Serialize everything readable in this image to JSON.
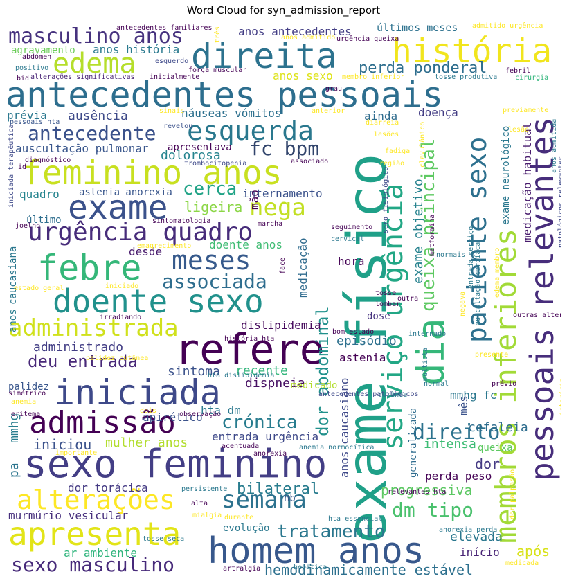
{
  "title": "Word Cloud for syn_admission_report",
  "words": [
    {
      "text": "antecedentes pessoais",
      "color": "#2d6e8e"
    },
    {
      "text": "exame físico",
      "color": "#1fa088"
    },
    {
      "text": "direita",
      "color": "#2c728e"
    },
    {
      "text": "história",
      "color": "#f1e51d"
    },
    {
      "text": "masculino anos",
      "color": "#46327e"
    },
    {
      "text": "edema",
      "color": "#b5de2b"
    },
    {
      "text": "feminino anos",
      "color": "#c8e020"
    },
    {
      "text": "exame",
      "color": "#3b528b"
    },
    {
      "text": "esquerda",
      "color": "#2a788e"
    },
    {
      "text": "fc bpm",
      "color": "#31446b"
    },
    {
      "text": "nega",
      "color": "#c2df23"
    },
    {
      "text": "urgência quadro",
      "color": "#472c7a"
    },
    {
      "text": "febre",
      "color": "#35b779"
    },
    {
      "text": "meses",
      "color": "#375a8c"
    },
    {
      "text": "doente sexo",
      "color": "#21918c"
    },
    {
      "text": "associada",
      "color": "#2e6d8e"
    },
    {
      "text": "administrada",
      "color": "#d0e11c"
    },
    {
      "text": "refere",
      "color": "#440154"
    },
    {
      "text": "iniciada",
      "color": "#3e4989"
    },
    {
      "text": "admissão",
      "color": "#440154"
    },
    {
      "text": "sexo feminino",
      "color": "#433e85"
    },
    {
      "text": "alterações",
      "color": "#fde725"
    },
    {
      "text": "apresenta",
      "color": "#e2e418"
    },
    {
      "text": "homem anos",
      "color": "#38588c"
    },
    {
      "text": "sexo masculino",
      "color": "#472a7a"
    },
    {
      "text": "semana",
      "color": "#2c728e"
    },
    {
      "text": "tratamento",
      "color": "#2a778e"
    },
    {
      "text": "pessoais relevantes",
      "color": "#472d7b"
    },
    {
      "text": "membros inferiores",
      "color": "#a2da37"
    },
    {
      "text": "dia",
      "color": "#35b779"
    },
    {
      "text": "paciente sexo",
      "color": "#2d708e"
    },
    {
      "text": "serviço urgência",
      "color": "#22a785"
    },
    {
      "text": "queixa principal",
      "color": "#5ec962"
    },
    {
      "text": "dor abdominal",
      "color": "#21918c"
    },
    {
      "text": "exame objetivo",
      "color": "#26828e"
    },
    {
      "text": "crónica",
      "color": "#287c8e"
    },
    {
      "text": "direito",
      "color": "#2c728e"
    },
    {
      "text": "dm tipo",
      "color": "#4ac16d"
    },
    {
      "text": "mmhg",
      "color": "#287d8e"
    },
    {
      "text": "pa",
      "color": "#2b758e"
    },
    {
      "text": "iniciou",
      "color": "#3b528b"
    },
    {
      "text": "deu entrada",
      "color": "#482878"
    },
    {
      "text": "ausência",
      "color": "#3e4a89"
    },
    {
      "text": "antecedente",
      "color": "#3b528b"
    },
    {
      "text": "perda ponderal",
      "color": "#2e6e8e"
    },
    {
      "text": "hemodinamicamente estável",
      "color": "#2d708e"
    },
    {
      "text": "cerca",
      "color": "#20a386"
    },
    {
      "text": "ligeira",
      "color": "#8bd646"
    },
    {
      "text": "dolorosa",
      "color": "#25848e"
    },
    {
      "text": "auscultação pulmonar",
      "color": "#39568c"
    },
    {
      "text": "anos antecedentes",
      "color": "#433e85"
    },
    {
      "text": "anos história",
      "color": "#29798e"
    },
    {
      "text": "últimos meses",
      "color": "#2c718e"
    },
    {
      "text": "prévia",
      "color": "#2a788e"
    },
    {
      "text": "náuseas vómitos",
      "color": "#2d708e"
    },
    {
      "text": "intensa",
      "color": "#3dbc74"
    },
    {
      "text": "progressiva",
      "color": "#5cc863"
    },
    {
      "text": "bilateral",
      "color": "#287c8e"
    },
    {
      "text": "mulher anos",
      "color": "#b2dd2d"
    },
    {
      "text": "dor torácica",
      "color": "#443a83"
    },
    {
      "text": "murmúrio vesicular",
      "color": "#472f7d"
    },
    {
      "text": "ar ambiente",
      "color": "#2fb47c"
    },
    {
      "text": "evolução",
      "color": "#2a788e"
    },
    {
      "text": "elevada",
      "color": "#2a778e"
    },
    {
      "text": "após",
      "color": "#d8e219"
    },
    {
      "text": "início",
      "color": "#482475"
    },
    {
      "text": "apirético",
      "color": "#3b528b"
    },
    {
      "text": "dispneia",
      "color": "#471063"
    },
    {
      "text": "astenia",
      "color": "#440154"
    },
    {
      "text": "sintoma",
      "color": "#3b528b"
    },
    {
      "text": "recente",
      "color": "#31b57b"
    },
    {
      "text": "episódio",
      "color": "#2d708e"
    },
    {
      "text": "administrado",
      "color": "#433e85"
    },
    {
      "text": "dislipidemia",
      "color": "#460a5d"
    },
    {
      "text": "doente anos",
      "color": "#3fbc73"
    },
    {
      "text": "desde",
      "color": "#481a6c"
    },
    {
      "text": "internamento",
      "color": "#3b528b"
    },
    {
      "text": "astenia anorexia",
      "color": "#39568c"
    },
    {
      "text": "quadro",
      "color": "#25848e"
    },
    {
      "text": "último",
      "color": "#2e6e8e"
    },
    {
      "text": "cefaleia",
      "color": "#2e6d8e"
    },
    {
      "text": "dor",
      "color": "#443983"
    },
    {
      "text": "perda peso",
      "color": "#440154"
    },
    {
      "text": "mmhg fc",
      "color": "#2a778e"
    },
    {
      "text": "medicação habitual",
      "color": "#481b6d"
    },
    {
      "text": "entrada urgência",
      "color": "#3e4989"
    },
    {
      "text": "hta dm",
      "color": "#2a788e"
    },
    {
      "text": "doença",
      "color": "#433d84"
    },
    {
      "text": "ainda",
      "color": "#2f6c8e"
    },
    {
      "text": "anos sexo",
      "color": "#dde318"
    },
    {
      "text": "apresentava",
      "color": "#440154"
    },
    {
      "text": "hora",
      "color": "#440154"
    },
    {
      "text": "medicação",
      "color": "#2f6b8e"
    },
    {
      "text": "anos caucasiano",
      "color": "#3e4989"
    },
    {
      "text": "exame neurológico",
      "color": "#2a778e"
    },
    {
      "text": "mês",
      "color": "#3b528b"
    },
    {
      "text": "palidez",
      "color": "#39568c"
    },
    {
      "text": "caucasiana",
      "color": "#2a778e"
    },
    {
      "text": "anos",
      "color": "#287d8e"
    },
    {
      "text": "hb",
      "color": "#38598c"
    },
    {
      "text": "dose",
      "color": "#46337f"
    },
    {
      "text": "medicado",
      "color": "#b2dd2d"
    },
    {
      "text": "generalizada",
      "color": "#2f6c8e"
    },
    {
      "text": "queixa",
      "color": "#5ec962"
    },
    {
      "text": "mão",
      "color": "#440154"
    },
    {
      "text": "antecedentes familiares",
      "color": "#440154"
    },
    {
      "text": "três",
      "color": "#fde725"
    },
    {
      "text": "admitido urgência",
      "color": "#fde725"
    },
    {
      "text": "urgência queixa",
      "color": "#440154"
    },
    {
      "text": "agravamento",
      "color": "#6ccd5a"
    },
    {
      "text": "anos admitido",
      "color": "#fde725"
    },
    {
      "text": "abdómen",
      "color": "#440154"
    },
    {
      "text": "positivo",
      "color": "#2a788e"
    },
    {
      "text": "esquerdo",
      "color": "#3e4989"
    },
    {
      "text": "bid",
      "color": "#440154"
    },
    {
      "text": "alterações significativas",
      "color": "#482475"
    },
    {
      "text": "inicialmente",
      "color": "#440154"
    },
    {
      "text": "força muscular",
      "color": "#440154"
    },
    {
      "text": "membro inferior",
      "color": "#fde725"
    },
    {
      "text": "tosse produtiva",
      "color": "#2a788e"
    },
    {
      "text": "febril",
      "color": "#440154"
    },
    {
      "text": "cirurgia",
      "color": "#31b57b"
    },
    {
      "text": "grau",
      "color": "#440154"
    },
    {
      "text": "pessoais hta",
      "color": "#39568c"
    },
    {
      "text": "sinais",
      "color": "#fde725"
    },
    {
      "text": "anterior",
      "color": "#fde725"
    },
    {
      "text": "previamente",
      "color": "#fde725"
    },
    {
      "text": "revelou",
      "color": "#3b528b"
    },
    {
      "text": "diarreia",
      "color": "#fde725"
    },
    {
      "text": "lesões",
      "color": "#fde725"
    },
    {
      "text": "lesão",
      "color": "#fde725"
    },
    {
      "text": "fadiga",
      "color": "#fde725"
    },
    {
      "text": "clavulânico",
      "color": "#fde725"
    },
    {
      "text": "região",
      "color": "#fde725"
    },
    {
      "text": "anos admitida",
      "color": "#2a788e"
    },
    {
      "text": "diagnóstico",
      "color": "#440154"
    },
    {
      "text": "trombocitopenia",
      "color": "#3e4989"
    },
    {
      "text": "associado",
      "color": "#440154"
    },
    {
      "text": "id",
      "color": "#440154"
    },
    {
      "text": "iniciada terapêutica",
      "color": "#3e4989"
    },
    {
      "text": "joelho",
      "color": "#440154"
    },
    {
      "text": "sintomatologia",
      "color": "#440154"
    },
    {
      "text": "marcha",
      "color": "#440154"
    },
    {
      "text": "seguimento",
      "color": "#440154"
    },
    {
      "text": "soro fisiológico",
      "color": "#3e4989"
    },
    {
      "text": "metformina",
      "color": "#440154"
    },
    {
      "text": "patológicos relevantes",
      "color": "#3e4989"
    },
    {
      "text": "emagrecimento",
      "color": "#fde725"
    },
    {
      "text": "cervical",
      "color": "#2a788e"
    },
    {
      "text": "normais",
      "color": "#2a788e"
    },
    {
      "text": "face",
      "color": "#440154"
    },
    {
      "text": "estado geral",
      "color": "#fde725"
    },
    {
      "text": "iniciado",
      "color": "#fde725"
    },
    {
      "text": "entrada serviço",
      "color": "#2a788e"
    },
    {
      "text": "edema membro",
      "color": "#fde725"
    },
    {
      "text": "tosse",
      "color": "#440154"
    },
    {
      "text": "outra",
      "color": "#440154"
    },
    {
      "text": "lombar",
      "color": "#440154"
    },
    {
      "text": "auscultação cardíaca",
      "color": "#2a788e"
    },
    {
      "text": "negava",
      "color": "#fde725"
    },
    {
      "text": "irradiando",
      "color": "#440154"
    },
    {
      "text": "outras alterações",
      "color": "#440154"
    },
    {
      "text": "história hta",
      "color": "#440154"
    },
    {
      "text": "bom estado",
      "color": "#440154"
    },
    {
      "text": "internado",
      "color": "#2a788e"
    },
    {
      "text": "palidez cutânea",
      "color": "#fde725"
    },
    {
      "text": "múltipla",
      "color": "#2a788e"
    },
    {
      "text": "presente",
      "color": "#fde725"
    },
    {
      "text": "hta dislipidemia",
      "color": "#2a788e"
    },
    {
      "text": "normal",
      "color": "#2a788e"
    },
    {
      "text": "prévio",
      "color": "#440154"
    },
    {
      "text": "simétrico",
      "color": "#440154"
    },
    {
      "text": "antecedentes patológicos",
      "color": "#3e4989"
    },
    {
      "text": "icterícia",
      "color": "#fde725"
    },
    {
      "text": "anemia",
      "color": "#fde725"
    },
    {
      "text": "cutânea",
      "color": "#2a788e"
    },
    {
      "text": "eritema",
      "color": "#440154"
    },
    {
      "text": "dois",
      "color": "#fde725"
    },
    {
      "text": "observação",
      "color": "#440154"
    },
    {
      "text": "importante",
      "color": "#fde725"
    },
    {
      "text": "acentuada",
      "color": "#440154"
    },
    {
      "text": "anorexia",
      "color": "#440154"
    },
    {
      "text": "anemia normocítica",
      "color": "#2a788e"
    },
    {
      "text": "dor palpação",
      "color": "#fde725"
    },
    {
      "text": "persistente",
      "color": "#2a788e"
    },
    {
      "text": "relevantes hta",
      "color": "#440154"
    },
    {
      "text": "alta",
      "color": "#440154"
    },
    {
      "text": "mialgia",
      "color": "#fde725"
    },
    {
      "text": "durante",
      "color": "#fde725"
    },
    {
      "text": "hta essencial",
      "color": "#2a788e"
    },
    {
      "text": "anorexia perda",
      "color": "#2a788e"
    },
    {
      "text": "tosse seca",
      "color": "#2a788e"
    },
    {
      "text": "hepática",
      "color": "#2a788e"
    },
    {
      "text": "medicada",
      "color": "#fde725"
    },
    {
      "text": "artralgia",
      "color": "#440154"
    }
  ]
}
